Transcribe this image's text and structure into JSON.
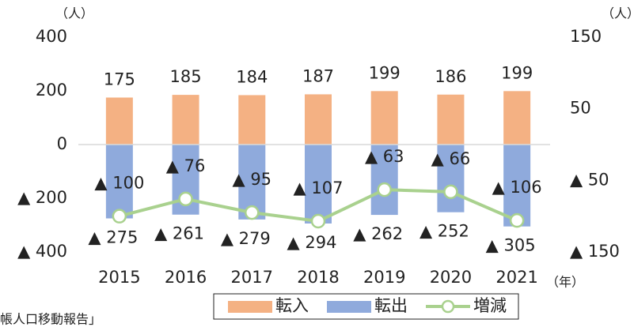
{
  "chart_data": {
    "type": "bar",
    "categories": [
      "2015",
      "2016",
      "2017",
      "2018",
      "2019",
      "2020",
      "2021"
    ],
    "series": [
      {
        "name": "転入",
        "color": "#f4b183",
        "values": [
          175,
          185,
          184,
          187,
          199,
          186,
          199
        ]
      },
      {
        "name": "転出",
        "color": "#8faadc",
        "values": [
          -275,
          -261,
          -279,
          -294,
          -262,
          -252,
          -305
        ],
        "value_labels": [
          "▲ 275",
          "▲ 261",
          "▲ 279",
          "▲ 294",
          "▲ 262",
          "▲ 252",
          "▲ 305"
        ]
      },
      {
        "name": "増減",
        "type": "line",
        "axis": "y2",
        "color": "#a9d18e",
        "values": [
          -100,
          -76,
          -95,
          -107,
          -63,
          -66,
          -106
        ],
        "value_labels": [
          "▲ 100",
          "▲ 76",
          "▲ 95",
          "▲ 107",
          "▲ 63",
          "▲ 66",
          "▲ 106"
        ]
      }
    ],
    "ylim": [
      -400,
      400
    ],
    "yticks": [
      400,
      200,
      0,
      {
        "value": -200,
        "label": "▲ 200"
      },
      {
        "value": -400,
        "label": "▲ 400"
      }
    ],
    "y2lim": [
      -150,
      150
    ],
    "y2ticks": [
      150,
      50,
      {
        "value": -50,
        "label": "▲ 50"
      },
      {
        "value": -150,
        "label": "▲ 150"
      }
    ],
    "y_unit": "（人）",
    "y2_unit": "（人）",
    "x_unit": "（年）",
    "legend": "bottom",
    "source": "帳人口移動報告」"
  }
}
